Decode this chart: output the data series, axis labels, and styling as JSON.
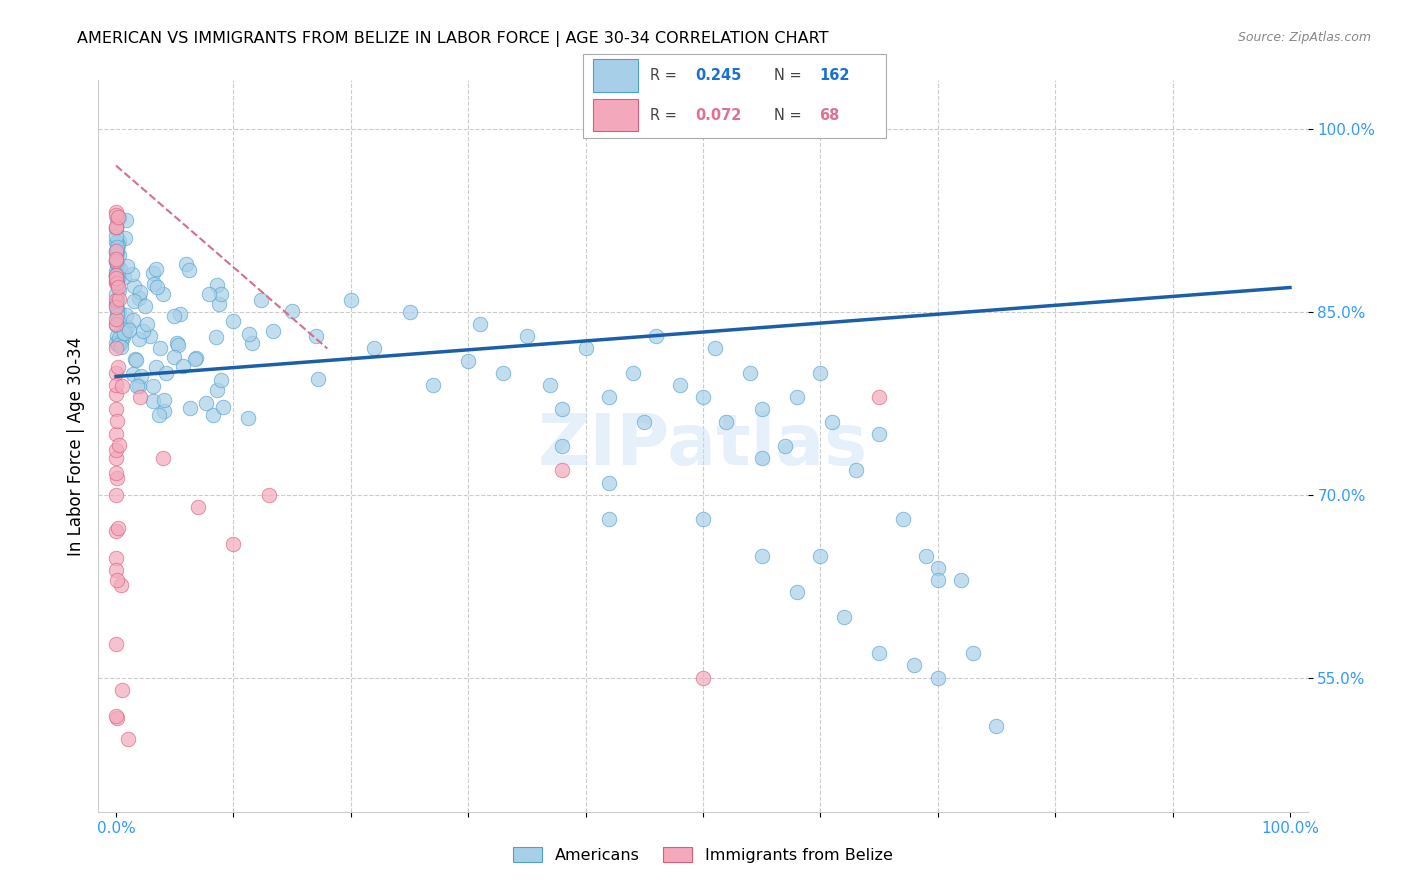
{
  "title": "AMERICAN VS IMMIGRANTS FROM BELIZE IN LABOR FORCE | AGE 30-34 CORRELATION CHART",
  "source": "Source: ZipAtlas.com",
  "ylabel": "In Labor Force | Age 30-34",
  "american_R": 0.245,
  "american_N": 162,
  "belize_R": 0.072,
  "belize_N": 68,
  "american_color": "#a8cfe8",
  "american_edge": "#4d9fcc",
  "belize_color": "#f4a8bb",
  "belize_edge": "#d45f7a",
  "trend_american_color": "#1a5fa8",
  "trend_belize_color": "#d4708a",
  "watermark": "ZIPatlas",
  "grid_color": "#cccccc",
  "xlim": [
    -0.015,
    1.015
  ],
  "ylim": [
    0.44,
    1.04
  ],
  "x_tick_labels_blue": "#3399ff",
  "y_tick_labels_blue": "#3399ff",
  "legend_R_blue": "#1a6fd4",
  "legend_R_pink": "#e07090",
  "legend_N_blue": "#1a6fd4",
  "legend_N_pink": "#e07090"
}
